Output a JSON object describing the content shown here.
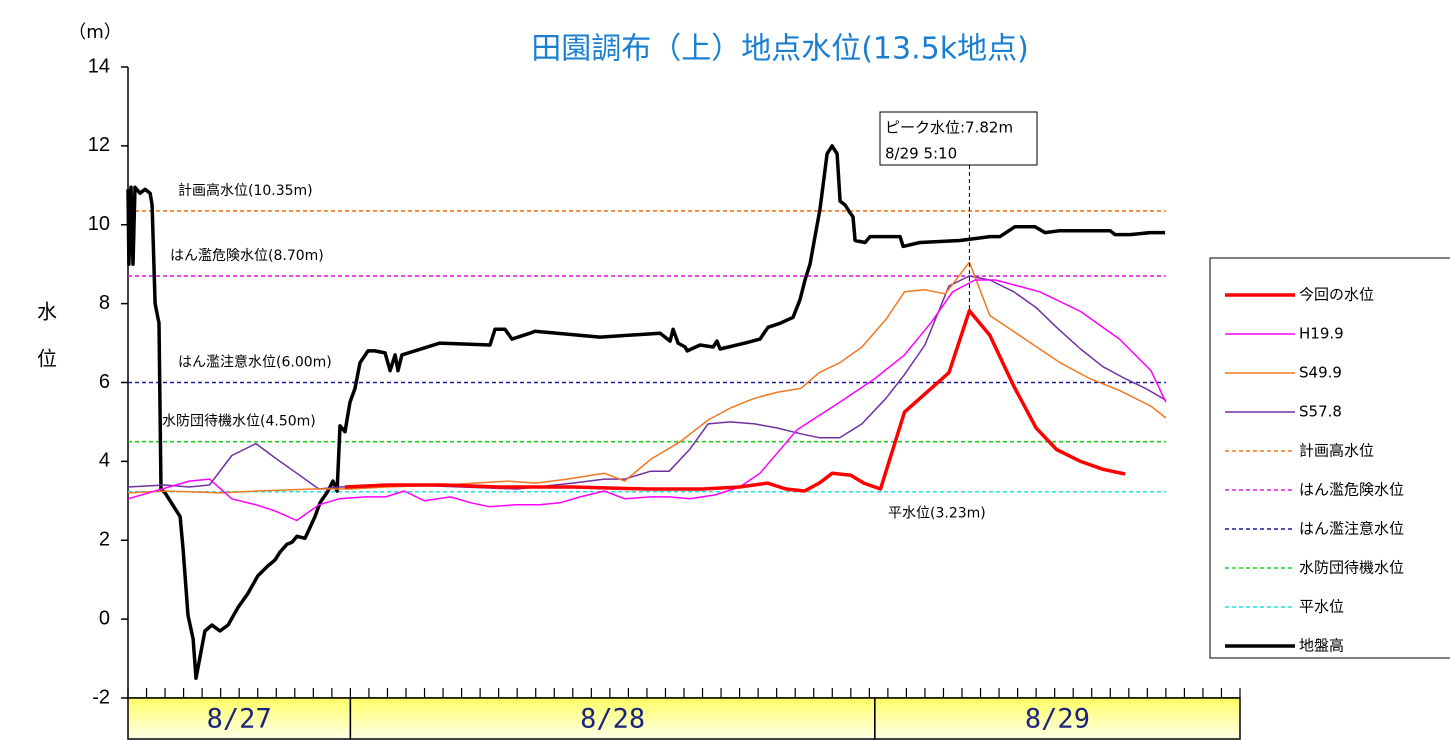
{
  "chart_data": {
    "type": "line",
    "title": "田園調布（上）地点水位(13.5k地点)",
    "y_unit": "（m）",
    "y_label": [
      "水",
      "位"
    ],
    "ylim": [
      -2,
      14
    ],
    "yticks": [
      -2,
      0,
      2,
      4,
      6,
      8,
      10,
      12,
      14
    ],
    "xlim": [
      0,
      60
    ],
    "date_bands": [
      {
        "label": "8/27",
        "range": [
          0,
          12
        ]
      },
      {
        "label": "8/28",
        "range": [
          12,
          40.3
        ]
      },
      {
        "label": "8/29",
        "range": [
          40.3,
          60
        ]
      }
    ],
    "series": [
      {
        "name": "今回の水位",
        "color": "#ff0000",
        "x": [
          11.7,
          14,
          17,
          20,
          24,
          28,
          31,
          33,
          34.5,
          35.5,
          36.5,
          37.3,
          38,
          39,
          39.7,
          40.6,
          41.9,
          44.3,
          45.4,
          46.5,
          47.8,
          49,
          50.1,
          51.4,
          52.6,
          53.8
        ],
        "values": [
          3.35,
          3.4,
          3.4,
          3.35,
          3.35,
          3.3,
          3.3,
          3.35,
          3.45,
          3.3,
          3.25,
          3.45,
          3.7,
          3.65,
          3.45,
          3.3,
          5.25,
          6.25,
          7.82,
          7.2,
          5.9,
          4.85,
          4.3,
          4.0,
          3.8,
          3.68
        ]
      },
      {
        "name": "H19.9",
        "color": "#ff00ff",
        "x": [
          0,
          3.3,
          4.4,
          5.6,
          6.9,
          7.9,
          9.1,
          10.3,
          11.4,
          12.8,
          13.9,
          14.9,
          16,
          17.4,
          18.5,
          19.5,
          20.9,
          22.2,
          23.3,
          24.4,
          25.7,
          26.8,
          28.2,
          29.2,
          30.3,
          31.7,
          33,
          34.1,
          36.1,
          38.4,
          40.3,
          41.9,
          43.3,
          44.5,
          45.7,
          46.8,
          47.6,
          49.2,
          51.4,
          53.5,
          55.2,
          56
        ],
        "values": [
          3.05,
          3.5,
          3.55,
          3.05,
          2.9,
          2.75,
          2.5,
          2.9,
          3.05,
          3.1,
          3.1,
          3.25,
          3.0,
          3.1,
          2.95,
          2.85,
          2.9,
          2.9,
          2.95,
          3.1,
          3.25,
          3.05,
          3.1,
          3.1,
          3.05,
          3.15,
          3.35,
          3.7,
          4.8,
          5.5,
          6.1,
          6.7,
          7.5,
          8.3,
          8.6,
          8.6,
          8.5,
          8.3,
          7.8,
          7.1,
          6.3,
          5.5
        ]
      },
      {
        "name": "S49.9",
        "color": "#f07820",
        "x": [
          0,
          2,
          5,
          7,
          10,
          12,
          14,
          17,
          20.5,
          22,
          23.7,
          25.7,
          26.8,
          28.2,
          29.8,
          31.3,
          32.5,
          33.8,
          35,
          36.3,
          37.3,
          38.4,
          39.6,
          40.9,
          41.9,
          43,
          44.1,
          45.4,
          46.5,
          48.4,
          50.3,
          51.9,
          53.5,
          55.2,
          56
        ],
        "values": [
          3.2,
          3.25,
          3.2,
          3.25,
          3.3,
          3.3,
          3.35,
          3.4,
          3.5,
          3.45,
          3.55,
          3.7,
          3.5,
          4.05,
          4.5,
          5.05,
          5.35,
          5.6,
          5.75,
          5.85,
          6.25,
          6.5,
          6.9,
          7.6,
          8.3,
          8.35,
          8.25,
          9.05,
          7.7,
          7.1,
          6.5,
          6.1,
          5.8,
          5.4,
          5.1
        ]
      },
      {
        "name": "S57.8",
        "color": "#7030a0",
        "x": [
          0,
          2,
          3.3,
          4.4,
          5.6,
          6.9,
          7.9,
          9.1,
          10.3,
          11.4,
          15,
          18,
          21,
          24,
          25.7,
          26.8,
          28.2,
          29.2,
          30.3,
          31.3,
          32.5,
          33.8,
          35,
          36.3,
          37.3,
          38.4,
          39.6,
          40.9,
          41.9,
          43,
          44.3,
          45.4,
          46.5,
          47.8,
          49,
          50.1,
          51.4,
          52.6,
          53.8,
          54.9,
          56
        ],
        "values": [
          3.35,
          3.4,
          3.35,
          3.4,
          4.15,
          4.45,
          4.1,
          3.7,
          3.3,
          3.35,
          3.4,
          3.35,
          3.3,
          3.45,
          3.55,
          3.55,
          3.75,
          3.75,
          4.3,
          4.95,
          5.0,
          4.95,
          4.85,
          4.7,
          4.6,
          4.6,
          4.95,
          5.6,
          6.2,
          6.95,
          8.45,
          8.7,
          8.6,
          8.3,
          7.9,
          7.4,
          6.85,
          6.4,
          6.1,
          5.85,
          5.55
        ]
      }
    ],
    "reference_lines": [
      {
        "name": "計画高水位",
        "label": "計画高水位(10.35m)",
        "value": 10.35,
        "color": "#f07820"
      },
      {
        "name": "はん濫危険水位",
        "label": "はん濫危険水位(8.70m)",
        "value": 8.7,
        "color": "#e020e0"
      },
      {
        "name": "はん濫注意水位",
        "label": "はん濫注意水位(6.00m)",
        "value": 6.0,
        "color": "#1a1a9a"
      },
      {
        "name": "水防団待機水位",
        "label": "水防団待機水位(4.50m)",
        "value": 4.5,
        "color": "#22cc22"
      },
      {
        "name": "平水位",
        "label": "平水位(3.23m)",
        "value": 3.23,
        "color": "#22e0e0"
      }
    ],
    "ground": {
      "name": "地盤高",
      "color": "#000000",
      "x": [
        0,
        0.05,
        0.16,
        0.27,
        0.38,
        0.65,
        0.92,
        1.19,
        1.3,
        1.46,
        1.67,
        1.78,
        2.0,
        2.54,
        2.81,
        2.97,
        3.24,
        3.51,
        3.67,
        4.15,
        4.53,
        4.96,
        5.4,
        5.94,
        6.47,
        7.01,
        7.55,
        7.93,
        8.2,
        8.58,
        8.85,
        9.12,
        9.55,
        10.09,
        10.36,
        10.79,
        11.06,
        11.28,
        11.44,
        11.71,
        11.98,
        12.25,
        12.52,
        12.95,
        13.33,
        13.87,
        14.14,
        14.41,
        14.57,
        14.78,
        16.83,
        19.53,
        19.8,
        20.34,
        20.72,
        21.69,
        21.96,
        25.47,
        28.71,
        29.25,
        29.41,
        29.68,
        30.06,
        30.17,
        30.87,
        31.57,
        31.78,
        31.95,
        33.29,
        34.1,
        34.53,
        35.18,
        35.88,
        36.26,
        36.53,
        36.8,
        37.34,
        37.72,
        37.99,
        38.26,
        38.42,
        38.69,
        38.96,
        39.12,
        39.23,
        39.77,
        40.04,
        41.66,
        41.82,
        42.73,
        44.89,
        46.51,
        47.05,
        47.86,
        48.94,
        49.48,
        50.29,
        52.99,
        53.26,
        54.07,
        55.15,
        55.96
      ],
      "values": [
        10.9,
        9.0,
        10.95,
        9.0,
        10.95,
        10.8,
        10.9,
        10.8,
        10.5,
        8.0,
        7.5,
        3.3,
        3.2,
        2.8,
        2.6,
        1.8,
        0.1,
        -0.5,
        -1.5,
        -0.3,
        -0.15,
        -0.3,
        -0.15,
        0.3,
        0.65,
        1.1,
        1.35,
        1.5,
        1.7,
        1.9,
        1.95,
        2.1,
        2.05,
        2.6,
        2.95,
        3.25,
        3.5,
        3.25,
        4.9,
        4.75,
        5.5,
        5.85,
        6.5,
        6.8,
        6.8,
        6.75,
        6.3,
        6.7,
        6.3,
        6.7,
        7.0,
        6.95,
        7.35,
        7.35,
        7.1,
        7.25,
        7.3,
        7.15,
        7.25,
        7.05,
        7.35,
        7.0,
        6.9,
        6.8,
        6.95,
        6.9,
        7.05,
        6.85,
        7.0,
        7.1,
        7.4,
        7.5,
        7.65,
        8.1,
        8.6,
        9.0,
        10.4,
        11.8,
        12.0,
        11.8,
        10.6,
        10.5,
        10.3,
        10.2,
        9.6,
        9.55,
        9.7,
        9.7,
        9.45,
        9.55,
        9.6,
        9.7,
        9.7,
        9.95,
        9.95,
        9.8,
        9.85,
        9.85,
        9.75,
        9.75,
        9.8,
        9.8
      ]
    },
    "annotation": {
      "text": [
        "ピーク水位:7.82m",
        "8/29  5:10"
      ],
      "x": 45.4,
      "y": 7.82
    }
  }
}
